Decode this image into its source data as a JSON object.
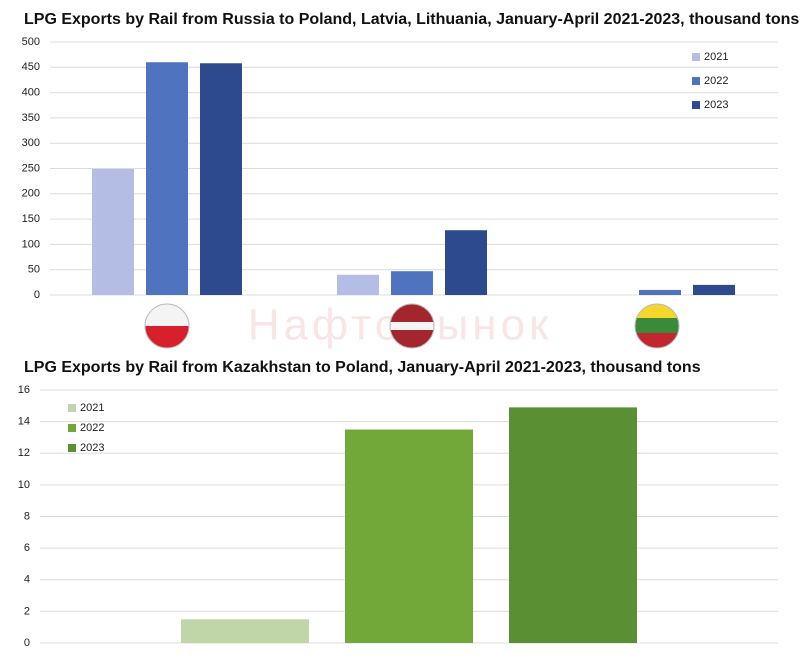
{
  "watermark": "НафтоРынок",
  "chart_data": [
    {
      "type": "bar",
      "title": "LPG Exports by Rail from Russia to Poland, Latvia, Lithuania, January-April 2021-2023, thousand tons",
      "categories": [
        null,
        null,
        null
      ],
      "series": [
        {
          "name": "2021",
          "color": "#b4bde3",
          "values": [
            249,
            40,
            0
          ]
        },
        {
          "name": "2022",
          "color": "#4f73be",
          "values": [
            460,
            47,
            10
          ]
        },
        {
          "name": "2023",
          "color": "#2e4a8f",
          "values": [
            458,
            128,
            20
          ]
        }
      ],
      "ylim": [
        0,
        500
      ],
      "yticks": [
        0,
        50,
        100,
        150,
        200,
        250,
        300,
        350,
        400,
        450,
        500
      ],
      "grid": true,
      "legend": "top-right"
    },
    {
      "type": "bar",
      "title": "LPG Exports by Rail from Kazakhstan to Poland, January-April 2021-2023, thousand tons",
      "categories": [
        null
      ],
      "series": [
        {
          "name": "2021",
          "color": "#c0d6a8",
          "values": [
            1.5
          ]
        },
        {
          "name": "2022",
          "color": "#72a83a",
          "values": [
            13.5
          ]
        },
        {
          "name": "2023",
          "color": "#5a8f34",
          "values": [
            14.9
          ]
        }
      ],
      "ylim": [
        0,
        16
      ],
      "yticks": [
        0,
        2,
        4,
        6,
        8,
        10,
        12,
        14,
        16
      ],
      "grid": true,
      "legend": "top-left"
    }
  ]
}
